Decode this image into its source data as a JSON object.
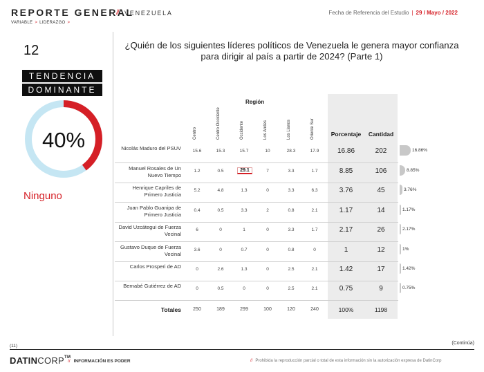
{
  "header": {
    "title": "REPORTE GENERAL",
    "slash": "//",
    "subtitle": "VENEZUELA",
    "breadcrumb": [
      "VARIABLE",
      "LIDERAZGO"
    ],
    "arrow": ">",
    "ref_label": "Fecha de Referencia del Estudio",
    "ref_sep": "|",
    "ref_date": "29 / Mayo / 2022"
  },
  "left_panel": {
    "question_number": "12",
    "tendencia_line1": "TENDENCIA",
    "tendencia_line2": "DOMINANTE",
    "donut_percent_text": "40%",
    "donut_value": 0.4,
    "dominant_answer": "Ninguno",
    "colors": {
      "accent": "#d51f26",
      "ring": "#c5e6f3"
    }
  },
  "question": "¿Quién de los siguientes líderes políticos de Venezuela le genera mayor confianza para dirigir al país a partir de 2024? (Parte 1)",
  "table": {
    "region_label": "Región",
    "region_columns": [
      "Centro",
      "Centro Occidente",
      "Occidente",
      "Los Andes",
      "Los Llanos",
      "Oriente Sur"
    ],
    "percent_header": "Porcentaje",
    "count_header": "Cantidad",
    "rows": [
      {
        "name": "Nicolás Maduro del PSUV",
        "regions": [
          "15.6",
          "15.3",
          "15.7",
          "10",
          "28.3",
          "17.9"
        ],
        "percent": "16.86",
        "count": "202",
        "bar_label": "16.86%",
        "bar_value": 16.86
      },
      {
        "name": "Manuel Rosales de Un Nuevo Tiempo",
        "regions": [
          "1.2",
          "0.5",
          "29.1",
          "7",
          "3.3",
          "1.7"
        ],
        "percent": "8.85",
        "count": "106",
        "bar_label": "8.85%",
        "bar_value": 8.85
      },
      {
        "name": "Henrique Capriles de Primero Justicia",
        "regions": [
          "5.2",
          "4.8",
          "1.3",
          "0",
          "3.3",
          "6.3"
        ],
        "percent": "3.76",
        "count": "45",
        "bar_label": "3.76%",
        "bar_value": 3.76
      },
      {
        "name": "Juan Pablo Guanipa de Primero Justicia",
        "regions": [
          "0.4",
          "0.5",
          "3.3",
          "2",
          "0.8",
          "2.1"
        ],
        "percent": "1.17",
        "count": "14",
        "bar_label": "1.17%",
        "bar_value": 1.17
      },
      {
        "name": "David Uzcátegui de Fuerza Vecinal",
        "regions": [
          "6",
          "0",
          "1",
          "0",
          "3.3",
          "1.7"
        ],
        "percent": "2.17",
        "count": "26",
        "bar_label": "2.17%",
        "bar_value": 2.17
      },
      {
        "name": "Gustavo Duque de Fuerza Vecinal",
        "regions": [
          "3.6",
          "0",
          "0.7",
          "0",
          "0.8",
          "0"
        ],
        "percent": "1",
        "count": "12",
        "bar_label": "1%",
        "bar_value": 1
      },
      {
        "name": "Carlos Prosperi de AD",
        "regions": [
          "0",
          "2.6",
          "1.3",
          "0",
          "2.5",
          "2.1"
        ],
        "percent": "1.42",
        "count": "17",
        "bar_label": "1.42%",
        "bar_value": 1.42
      },
      {
        "name": "Bernabé Gutiérrez de AD",
        "regions": [
          "0",
          "0.5",
          "0",
          "0",
          "2.5",
          "2.1"
        ],
        "percent": "0.75",
        "count": "9",
        "bar_label": "0.75%",
        "bar_value": 0.75
      }
    ],
    "highlight_cell": {
      "row": 1,
      "col": 2
    },
    "totals": {
      "label": "Totales",
      "regions": [
        "250",
        "189",
        "299",
        "100",
        "120",
        "240"
      ],
      "percent": "100%",
      "count": "1198"
    }
  },
  "footer": {
    "continua": "(Continúa)",
    "page": "(11)",
    "brand_bold": "DATIN",
    "brand_light": "CORP",
    "brand_tm": "TM",
    "slash": "//",
    "tagline": "INFORMACIÓN ES PODER",
    "legal": "Prohibida la reproducción parcial o total de esta información sin la autorización expresa de DatinCorp"
  }
}
